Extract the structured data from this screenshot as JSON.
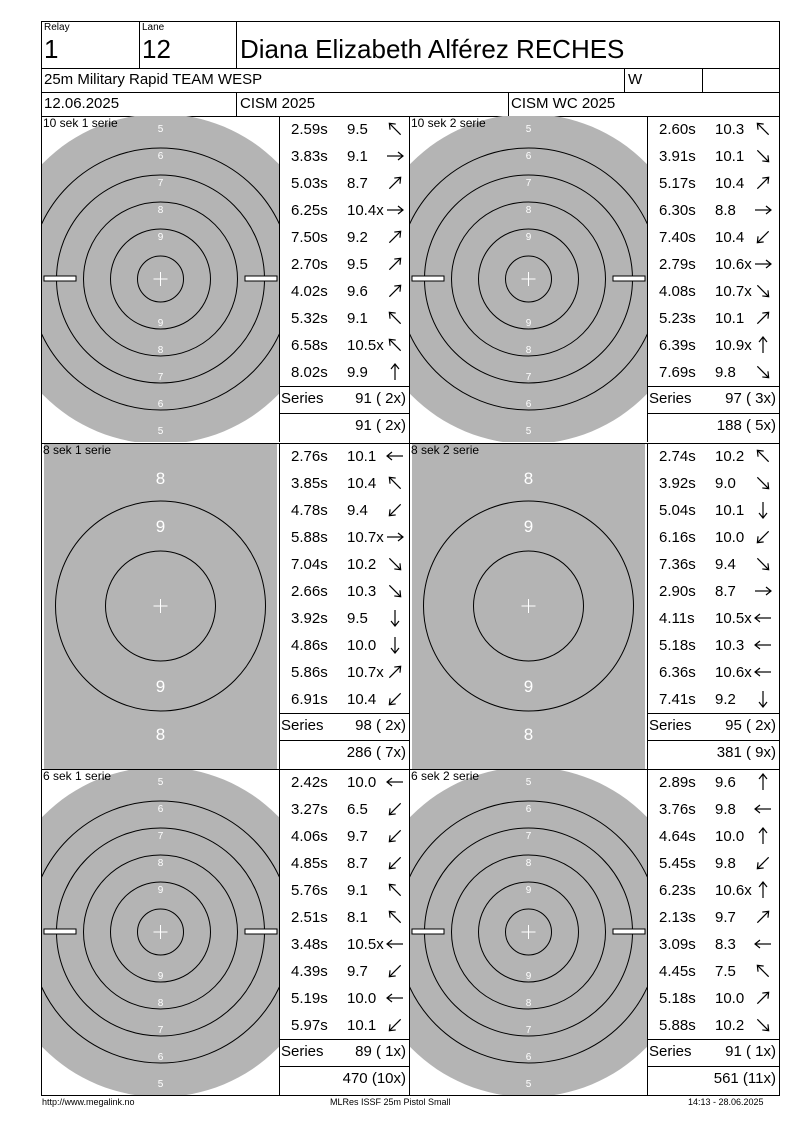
{
  "header": {
    "relay_label": "Relay",
    "relay": "1",
    "lane_label": "Lane",
    "lane": "12",
    "name": "Diana Elizabeth Alférez RECHES",
    "event": "25m Military Rapid TEAM WESP",
    "gender": "W",
    "date": "12.06.2025",
    "competition": "CISM 2025",
    "competition_full": "CISM WC 2025"
  },
  "panels": [
    {
      "title": "10 sek 1 serie",
      "target": "precision",
      "shots": [
        {
          "time": "2.59s",
          "value": "9.5",
          "dir": "nw"
        },
        {
          "time": "3.83s",
          "value": "9.1",
          "dir": "e"
        },
        {
          "time": "5.03s",
          "value": "8.7",
          "dir": "ne"
        },
        {
          "time": "6.25s",
          "value": "10.4x",
          "dir": "e"
        },
        {
          "time": "7.50s",
          "value": "9.2",
          "dir": "ne"
        },
        {
          "time": "2.70s",
          "value": "9.5",
          "dir": "ne"
        },
        {
          "time": "4.02s",
          "value": "9.6",
          "dir": "ne"
        },
        {
          "time": "5.32s",
          "value": "9.1",
          "dir": "nw"
        },
        {
          "time": "6.58s",
          "value": "10.5x",
          "dir": "nw"
        },
        {
          "time": "8.02s",
          "value": "9.9",
          "dir": "n"
        }
      ],
      "series_label": "Series",
      "series_total": "91 ( 2x)",
      "running_total": "91 ( 2x)"
    },
    {
      "title": "10 sek 2 serie",
      "target": "precision",
      "shots": [
        {
          "time": "2.60s",
          "value": "10.3",
          "dir": "nw"
        },
        {
          "time": "3.91s",
          "value": "10.1",
          "dir": "se"
        },
        {
          "time": "5.17s",
          "value": "10.4",
          "dir": "ne"
        },
        {
          "time": "6.30s",
          "value": "8.8",
          "dir": "e"
        },
        {
          "time": "7.40s",
          "value": "10.4",
          "dir": "sw"
        },
        {
          "time": "2.79s",
          "value": "10.6x",
          "dir": "e"
        },
        {
          "time": "4.08s",
          "value": "10.7x",
          "dir": "se"
        },
        {
          "time": "5.23s",
          "value": "10.1",
          "dir": "ne"
        },
        {
          "time": "6.39s",
          "value": "10.9x",
          "dir": "n"
        },
        {
          "time": "7.69s",
          "value": "9.8",
          "dir": "se"
        }
      ],
      "series_label": "Series",
      "series_total": "97 ( 3x)",
      "running_total": "188 ( 5x)"
    },
    {
      "title": "8 sek 1 serie",
      "target": "rapid",
      "shots": [
        {
          "time": "2.76s",
          "value": "10.1",
          "dir": "w"
        },
        {
          "time": "3.85s",
          "value": "10.4",
          "dir": "nw"
        },
        {
          "time": "4.78s",
          "value": "9.4",
          "dir": "sw"
        },
        {
          "time": "5.88s",
          "value": "10.7x",
          "dir": "e"
        },
        {
          "time": "7.04s",
          "value": "10.2",
          "dir": "se"
        },
        {
          "time": "2.66s",
          "value": "10.3",
          "dir": "se"
        },
        {
          "time": "3.92s",
          "value": "9.5",
          "dir": "s"
        },
        {
          "time": "4.86s",
          "value": "10.0",
          "dir": "s"
        },
        {
          "time": "5.86s",
          "value": "10.7x",
          "dir": "ne"
        },
        {
          "time": "6.91s",
          "value": "10.4",
          "dir": "sw"
        }
      ],
      "series_label": "Series",
      "series_total": "98 ( 2x)",
      "running_total": "286 ( 7x)"
    },
    {
      "title": "8 sek 2 serie",
      "target": "rapid",
      "shots": [
        {
          "time": "2.74s",
          "value": "10.2",
          "dir": "nw"
        },
        {
          "time": "3.92s",
          "value": "9.0",
          "dir": "se"
        },
        {
          "time": "5.04s",
          "value": "10.1",
          "dir": "s"
        },
        {
          "time": "6.16s",
          "value": "10.0",
          "dir": "sw"
        },
        {
          "time": "7.36s",
          "value": "9.4",
          "dir": "se"
        },
        {
          "time": "2.90s",
          "value": "8.7",
          "dir": "e"
        },
        {
          "time": "4.11s",
          "value": "10.5x",
          "dir": "w"
        },
        {
          "time": "5.18s",
          "value": "10.3",
          "dir": "w"
        },
        {
          "time": "6.36s",
          "value": "10.6x",
          "dir": "w"
        },
        {
          "time": "7.41s",
          "value": "9.2",
          "dir": "s"
        }
      ],
      "series_label": "Series",
      "series_total": "95 ( 2x)",
      "running_total": "381 ( 9x)"
    },
    {
      "title": "6 sek 1 serie",
      "target": "precision",
      "shots": [
        {
          "time": "2.42s",
          "value": "10.0",
          "dir": "w"
        },
        {
          "time": "3.27s",
          "value": "6.5",
          "dir": "sw"
        },
        {
          "time": "4.06s",
          "value": "9.7",
          "dir": "sw"
        },
        {
          "time": "4.85s",
          "value": "8.7",
          "dir": "sw"
        },
        {
          "time": "5.76s",
          "value": "9.1",
          "dir": "nw"
        },
        {
          "time": "2.51s",
          "value": "8.1",
          "dir": "nw"
        },
        {
          "time": "3.48s",
          "value": "10.5x",
          "dir": "w"
        },
        {
          "time": "4.39s",
          "value": "9.7",
          "dir": "sw"
        },
        {
          "time": "5.19s",
          "value": "10.0",
          "dir": "w"
        },
        {
          "time": "5.97s",
          "value": "10.1",
          "dir": "sw"
        }
      ],
      "series_label": "Series",
      "series_total": "89 ( 1x)",
      "running_total": "470 (10x)"
    },
    {
      "title": "6 sek 2 serie",
      "target": "precision",
      "shots": [
        {
          "time": "2.89s",
          "value": "9.6",
          "dir": "n"
        },
        {
          "time": "3.76s",
          "value": "9.8",
          "dir": "w"
        },
        {
          "time": "4.64s",
          "value": "10.0",
          "dir": "n"
        },
        {
          "time": "5.45s",
          "value": "9.8",
          "dir": "sw"
        },
        {
          "time": "6.23s",
          "value": "10.6x",
          "dir": "n"
        },
        {
          "time": "2.13s",
          "value": "9.7",
          "dir": "ne"
        },
        {
          "time": "3.09s",
          "value": "8.3",
          "dir": "w"
        },
        {
          "time": "4.45s",
          "value": "7.5",
          "dir": "nw"
        },
        {
          "time": "5.18s",
          "value": "10.0",
          "dir": "ne"
        },
        {
          "time": "5.88s",
          "value": "10.2",
          "dir": "se"
        }
      ],
      "series_label": "Series",
      "series_total": "91 ( 1x)",
      "running_total": "561 (11x)"
    }
  ],
  "target_labels": {
    "precision": [
      "5",
      "6",
      "7",
      "8",
      "9"
    ],
    "rapid": [
      "8",
      "9"
    ]
  },
  "colors": {
    "target_gray": "#b4b4b4",
    "line": "#000000",
    "background": "#ffffff"
  },
  "footer": {
    "left": "http://www.megalink.no",
    "center": "MLRes ISSF 25m Pistol Small",
    "right": "14:13 - 28.06.2025"
  }
}
